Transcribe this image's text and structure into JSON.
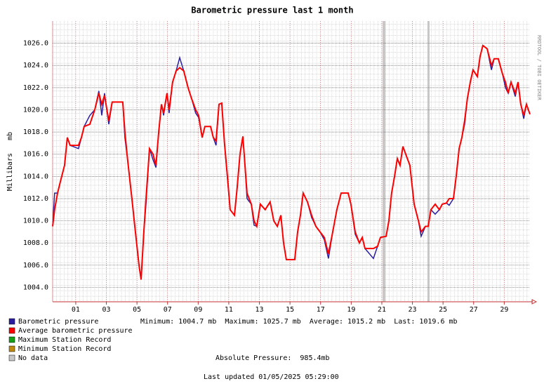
{
  "chart_data": {
    "type": "line",
    "title": "Barometric pressure last 1 month",
    "y_label": "Millibars   mb",
    "side_note": "RRDTOOL / TOBI OETIKER",
    "xlim": [
      -0.51,
      30.68
    ],
    "xticks": [
      {
        "value": 1,
        "label": "01"
      },
      {
        "value": 3,
        "label": "03"
      },
      {
        "value": 5,
        "label": "05"
      },
      {
        "value": 7,
        "label": "07"
      },
      {
        "value": 9,
        "label": "09"
      },
      {
        "value": 11,
        "label": "11"
      },
      {
        "value": 13,
        "label": "13"
      },
      {
        "value": 15,
        "label": "15"
      },
      {
        "value": 17,
        "label": "17"
      },
      {
        "value": 19,
        "label": "19"
      },
      {
        "value": 21,
        "label": "21"
      },
      {
        "value": 23,
        "label": "23"
      },
      {
        "value": 25,
        "label": "25"
      },
      {
        "value": 27,
        "label": "27"
      },
      {
        "value": 29,
        "label": "29"
      }
    ],
    "ylim": [
      1002.7,
      1028
    ],
    "yticks": [
      {
        "value": 1004,
        "label": "1004.0"
      },
      {
        "value": 1006,
        "label": "1006.0"
      },
      {
        "value": 1008,
        "label": "1008.0"
      },
      {
        "value": 1010,
        "label": "1010.0"
      },
      {
        "value": 1012,
        "label": "1012.0"
      },
      {
        "value": 1014,
        "label": "1014.0"
      },
      {
        "value": 1016,
        "label": "1016.0"
      },
      {
        "value": 1018,
        "label": "1018.0"
      },
      {
        "value": 1020,
        "label": "1020.0"
      },
      {
        "value": 1022,
        "label": "1022.0"
      },
      {
        "value": 1024,
        "label": "1024.0"
      },
      {
        "value": 1026,
        "label": "1026.0"
      }
    ],
    "grid": true,
    "x": [
      -0.51,
      -0.38,
      -0.19,
      -0.01,
      0.27,
      0.45,
      0.63,
      1.18,
      1.37,
      1.55,
      1.92,
      2.24,
      2.51,
      2.7,
      2.88,
      3.16,
      3.38,
      4.07,
      4.21,
      4.39,
      4.67,
      4.9,
      5.13,
      5.27,
      5.45,
      5.59,
      5.82,
      6.05,
      6.24,
      6.42,
      6.6,
      6.74,
      6.96,
      7.1,
      7.33,
      7.56,
      7.79,
      8.06,
      8.34,
      8.57,
      8.84,
      9.03,
      9.26,
      9.44,
      9.81,
      9.99,
      10.17,
      10.36,
      10.54,
      10.72,
      10.91,
      11.09,
      11.37,
      11.55,
      11.73,
      11.92,
      12.06,
      12.19,
      12.47,
      12.65,
      12.83,
      13.06,
      13.38,
      13.7,
      13.94,
      14.17,
      14.4,
      14.58,
      14.76,
      15.31,
      15.5,
      15.68,
      15.86,
      16.14,
      16.41,
      16.69,
      16.96,
      17.24,
      17.51,
      17.79,
      18.06,
      18.34,
      18.8,
      18.98,
      19.26,
      19.53,
      19.72,
      19.9,
      20.45,
      20.72,
      20.91,
      21.28,
      21.46,
      21.64,
      21.83,
      22.01,
      22.19,
      22.38,
      22.56,
      22.83,
      23.11,
      23.39,
      23.57,
      23.85,
      24.03,
      24.21,
      24.49,
      24.76,
      24.95,
      25.22,
      25.4,
      25.68,
      25.86,
      26.05,
      26.23,
      26.41,
      26.59,
      26.78,
      26.96,
      27.24,
      27.42,
      27.6,
      27.88,
      28.16,
      28.34,
      28.61,
      28.89,
      29.08,
      29.26,
      29.44,
      29.72,
      29.9,
      30.08,
      30.27,
      30.45,
      30.68
    ],
    "series": [
      {
        "name": "Barometric pressure",
        "color": "#2a1ea0",
        "values": [
          1009.5,
          1012.5,
          1012.5,
          1013.5,
          1015,
          1017.5,
          1016.8,
          1016.5,
          1017.5,
          1018.5,
          1019.5,
          1020,
          1021.7,
          1019.5,
          1021.5,
          1018.7,
          1020.7,
          1020.7,
          1017.5,
          1015.5,
          1012,
          1009,
          1006,
          1004.7,
          1009,
          1011.5,
          1016.5,
          1015.5,
          1014.8,
          1018,
          1020.5,
          1019.5,
          1021.5,
          1019.7,
          1022.5,
          1023.5,
          1024.7,
          1023.5,
          1022,
          1021,
          1019.7,
          1019.3,
          1017.5,
          1018.5,
          1018.5,
          1017.5,
          1016.8,
          1020.5,
          1020.6,
          1017,
          1013.8,
          1011,
          1010.5,
          1013,
          1016,
          1017.6,
          1015,
          1012,
          1011.5,
          1009.6,
          1009.5,
          1011.5,
          1011,
          1011.7,
          1010,
          1009.5,
          1010.5,
          1008,
          1006.5,
          1006.5,
          1009,
          1010.5,
          1012.5,
          1011.7,
          1010.3,
          1009.5,
          1009,
          1008.3,
          1006.6,
          1009,
          1011,
          1012.5,
          1012.5,
          1011.5,
          1008.8,
          1008,
          1008.5,
          1007.5,
          1006.6,
          1007.7,
          1008.5,
          1008.6,
          1010,
          1012.5,
          1014,
          1015.6,
          1015,
          1016.7,
          1016,
          1015,
          1011.5,
          1010,
          1008.6,
          1009.5,
          1009.5,
          1011,
          1010.6,
          1011,
          1011.5,
          1011.6,
          1011.4,
          1012,
          1014,
          1016.5,
          1017.5,
          1018.7,
          1021,
          1022.5,
          1023.6,
          1023,
          1024.8,
          1025.8,
          1025.5,
          1023.6,
          1024.6,
          1024.6,
          1023.2,
          1022,
          1021.5,
          1022.5,
          1021.2,
          1022.5,
          1020.5,
          1019.2,
          1020.5,
          1019.6
        ]
      },
      {
        "name": "Average barometric pressure",
        "color": "#ff0000",
        "values": [
          1009.5,
          1011,
          1012.5,
          1013.5,
          1015,
          1017.5,
          1016.8,
          1016.8,
          1017.5,
          1018.5,
          1018.7,
          1020,
          1021.5,
          1020.5,
          1021.3,
          1019,
          1020.7,
          1020.7,
          1018,
          1015.5,
          1012,
          1009,
          1006,
          1004.7,
          1009,
          1012,
          1016.5,
          1016,
          1015,
          1018,
          1020.5,
          1019.7,
          1021.5,
          1020,
          1022.5,
          1023.5,
          1023.8,
          1023.5,
          1022,
          1021,
          1020,
          1019.5,
          1017.5,
          1018.5,
          1018.5,
          1017.5,
          1017.2,
          1020.5,
          1020.6,
          1017,
          1014,
          1011,
          1010.5,
          1013,
          1016,
          1017.6,
          1015,
          1012.5,
          1011.5,
          1010,
          1009.5,
          1011.5,
          1011,
          1011.7,
          1010,
          1009.5,
          1010.5,
          1008,
          1006.5,
          1006.5,
          1009,
          1010.5,
          1012.5,
          1011.7,
          1010.5,
          1009.5,
          1009,
          1008.5,
          1007,
          1009,
          1011,
          1012.5,
          1012.5,
          1011.5,
          1009,
          1008,
          1008.5,
          1007.5,
          1007.5,
          1007.7,
          1008.5,
          1008.6,
          1010,
          1012.5,
          1014,
          1015.6,
          1015,
          1016.7,
          1016,
          1015,
          1011.5,
          1010,
          1009,
          1009.5,
          1009.5,
          1011,
          1011.5,
          1011,
          1011.5,
          1011.6,
          1012,
          1012,
          1014,
          1016.5,
          1017.5,
          1019,
          1021,
          1022.5,
          1023.6,
          1023,
          1024.8,
          1025.8,
          1025.5,
          1024,
          1024.6,
          1024.6,
          1023.2,
          1022.5,
          1021.5,
          1022.5,
          1021.5,
          1022.5,
          1020.5,
          1019.5,
          1020.5,
          1019.6
        ]
      }
    ],
    "legend_items": [
      {
        "name": "Maximum Station Record",
        "color": "#16a016"
      },
      {
        "name": "Minimum Station Record",
        "color": "#c08a10"
      },
      {
        "name": "No data",
        "color": "#c8c8c8"
      }
    ],
    "stats": "Minimum: 1004.7 mb  Maximum: 1025.7 mb  Average: 1015.2 mb  Last: 1019.6 mb",
    "absolute_pressure": "Absolute Pressure:  985.4mb",
    "last_updated": "Last updated 01/05/2025 05:29:00"
  }
}
